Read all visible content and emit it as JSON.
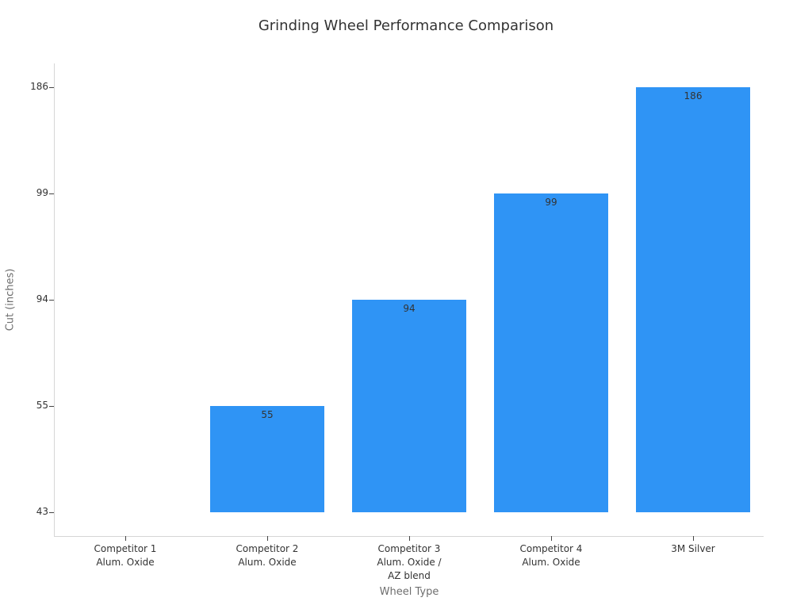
{
  "chart_data": {
    "type": "bar",
    "title": "Grinding Wheel Performance Comparison",
    "xlabel": "Wheel Type",
    "ylabel": "Cut (inches)",
    "categories": [
      "Competitor 1\nAlum. Oxide",
      "Competitor 2\nAlum. Oxide",
      "Competitor 3\nAlum. Oxide /\nAZ blend",
      "Competitor 4\nAlum. Oxide",
      "3M Silver"
    ],
    "values": [
      43,
      55,
      94,
      99,
      186
    ],
    "bar_labels": [
      "",
      "55",
      "94",
      "99",
      "186"
    ],
    "yticks": [
      43,
      55,
      94,
      99,
      186
    ],
    "baseline": 43,
    "axis_note": "y ticks are evenly spaced at the data values (ordinal spacing); bars rise from the 43 baseline; no gridlines; no legend",
    "grid": false,
    "legend": false
  },
  "colors": {
    "bar": "#2f94f5",
    "title_text": "#333333",
    "tick_text": "#333333",
    "bar_value_text": "#333333",
    "axis_title_text": "#6e6e6e",
    "spine": "#d6d6d6",
    "tick_mark": "#444444",
    "background": "#ffffff"
  }
}
